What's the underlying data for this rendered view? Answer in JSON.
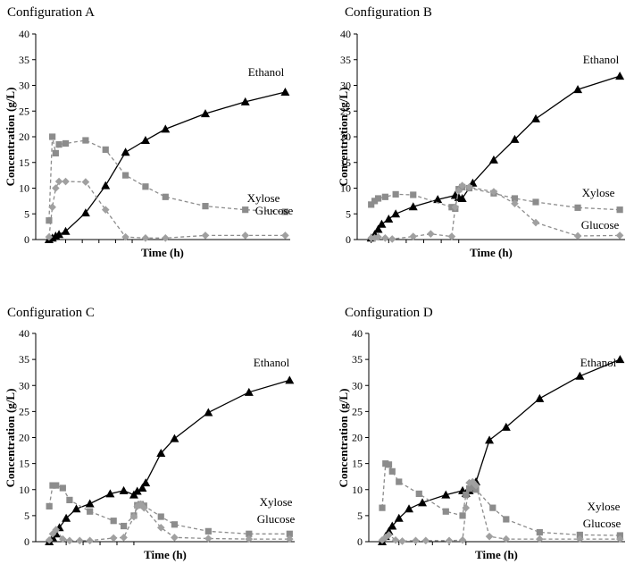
{
  "chart_data": [
    {
      "type": "line",
      "title": "Configuration A",
      "xlabel": "Time (h)",
      "ylabel": "Concentration (g/L)",
      "xlim": [
        -8,
        145
      ],
      "ylim": [
        0,
        40
      ],
      "xticks": [
        0,
        10,
        20,
        30,
        40,
        50
      ],
      "xtick_labels": [
        "",
        "",
        "",
        "",
        "",
        ""
      ],
      "yticks": [
        0,
        5,
        10,
        15,
        20,
        25,
        30,
        35,
        40
      ],
      "series": [
        {
          "name": "Ethanol",
          "marker": "triangle",
          "x": [
            0,
            2,
            4,
            6,
            10,
            22,
            34,
            46,
            58,
            70,
            94,
            118,
            142
          ],
          "y": [
            0,
            0.3,
            0.7,
            1.0,
            1.6,
            5.2,
            10.5,
            17.0,
            19.3,
            21.5,
            24.5,
            26.8,
            28.7
          ]
        },
        {
          "name": "Xylose",
          "marker": "square",
          "x": [
            0,
            2,
            4,
            6,
            10,
            22,
            34,
            46,
            58,
            70,
            94,
            118,
            142
          ],
          "y": [
            3.7,
            20.0,
            16.8,
            18.5,
            18.7,
            19.3,
            17.5,
            12.5,
            10.3,
            8.3,
            6.5,
            5.8,
            5.4
          ]
        },
        {
          "name": "Glucose",
          "marker": "diamond",
          "x": [
            0,
            2,
            4,
            6,
            10,
            22,
            34,
            46,
            58,
            70,
            94,
            118,
            142
          ],
          "y": [
            0.5,
            6.3,
            10.0,
            11.3,
            11.3,
            11.2,
            5.8,
            0.5,
            0.3,
            0.3,
            0.8,
            0.8,
            0.8
          ]
        }
      ]
    },
    {
      "type": "line",
      "title": "Configuration B",
      "xlabel": "Time (h)",
      "ylabel": "Concentration (g/L)",
      "xlim": [
        -8,
        145
      ],
      "ylim": [
        0,
        40
      ],
      "xticks": [
        0,
        10,
        20,
        30,
        40,
        50
      ],
      "xtick_labels": [
        "",
        "",
        "",
        "",
        "",
        ""
      ],
      "yticks": [
        0,
        5,
        10,
        15,
        20,
        25,
        30,
        35,
        40
      ],
      "series": [
        {
          "name": "Ethanol",
          "marker": "triangle",
          "x": [
            0,
            2,
            4,
            6,
            10,
            14,
            24,
            38,
            48,
            50,
            52,
            58,
            70,
            82,
            94,
            118,
            142
          ],
          "y": [
            0.3,
            1.0,
            2.0,
            3.0,
            4.0,
            5.0,
            6.4,
            7.8,
            8.6,
            8.2,
            8.0,
            11.0,
            15.5,
            19.5,
            23.5,
            29.2,
            31.8
          ]
        },
        {
          "name": "Xylose",
          "marker": "square",
          "x": [
            0,
            2,
            4,
            8,
            14,
            24,
            46,
            48,
            50,
            52,
            56,
            70,
            82,
            94,
            118,
            142
          ],
          "y": [
            6.8,
            7.5,
            8.0,
            8.3,
            8.8,
            8.7,
            6.3,
            6.0,
            9.8,
            10.2,
            10.0,
            9.0,
            8.0,
            7.3,
            6.2,
            5.8
          ]
        },
        {
          "name": "Glucose",
          "marker": "diamond",
          "x": [
            0,
            2,
            4,
            8,
            12,
            24,
            34,
            46,
            48,
            50,
            52,
            56,
            70,
            82,
            94,
            118,
            142
          ],
          "y": [
            0.3,
            0.3,
            0.5,
            0.3,
            0.1,
            0.6,
            1.1,
            0.6,
            6.3,
            9.5,
            10.5,
            10.2,
            9.3,
            7.0,
            3.3,
            0.7,
            0.8
          ]
        }
      ]
    },
    {
      "type": "line",
      "title": "Configuration C",
      "xlabel": "Time (h)",
      "ylabel": "Concentration (g/L)",
      "xlim": [
        -8,
        145
      ],
      "ylim": [
        0,
        40
      ],
      "xticks": [
        0,
        10,
        20,
        30,
        40,
        50
      ],
      "xtick_labels": [
        "",
        "",
        "",
        "",
        "",
        ""
      ],
      "yticks": [
        0,
        5,
        10,
        15,
        20,
        25,
        30,
        35,
        40
      ],
      "series": [
        {
          "name": "Ethanol",
          "marker": "triangle",
          "x": [
            0,
            2,
            4,
            6,
            10,
            16,
            24,
            36,
            44,
            50,
            52,
            55,
            57,
            66,
            74,
            94,
            118,
            142
          ],
          "y": [
            0,
            0.8,
            1.5,
            2.7,
            4.5,
            6.3,
            7.3,
            9.2,
            9.8,
            9.0,
            9.7,
            10.3,
            11.3,
            17.0,
            19.8,
            24.8,
            28.7,
            31.0
          ]
        },
        {
          "name": "Xylose",
          "marker": "square",
          "x": [
            0,
            2,
            4,
            8,
            12,
            24,
            38,
            44,
            50,
            52,
            54,
            56,
            66,
            74,
            94,
            118,
            142
          ],
          "y": [
            6.8,
            10.8,
            10.8,
            10.3,
            8.0,
            5.8,
            4.0,
            3.0,
            5.0,
            7.0,
            7.2,
            6.9,
            4.8,
            3.3,
            2.0,
            1.5,
            1.5
          ]
        },
        {
          "name": "Glucose",
          "marker": "diamond",
          "x": [
            0,
            2,
            4,
            8,
            12,
            18,
            24,
            38,
            44,
            50,
            52,
            54,
            56,
            66,
            74,
            94,
            118,
            142
          ],
          "y": [
            0.3,
            1.5,
            2.3,
            0.5,
            0.2,
            0.2,
            0.2,
            0.7,
            0.8,
            4.8,
            6.8,
            7.2,
            6.5,
            2.7,
            0.8,
            0.6,
            0.5,
            0.5
          ]
        }
      ]
    },
    {
      "type": "line",
      "title": "Configuration D",
      "xlabel": "Time (h)",
      "ylabel": "Concentration (g/L)",
      "xlim": [
        -8,
        145
      ],
      "ylim": [
        0,
        40
      ],
      "xticks": [
        0,
        10,
        20,
        30,
        40,
        50
      ],
      "xtick_labels": [
        "",
        "",
        "",
        "",
        "",
        ""
      ],
      "yticks": [
        0,
        5,
        10,
        15,
        20,
        25,
        30,
        35,
        40
      ],
      "series": [
        {
          "name": "Ethanol",
          "marker": "triangle",
          "x": [
            0,
            2,
            4,
            6,
            10,
            16,
            24,
            38,
            48,
            50,
            52,
            54,
            56,
            64,
            74,
            94,
            118,
            142
          ],
          "y": [
            0,
            1.0,
            2.0,
            3.0,
            4.5,
            6.3,
            7.5,
            9.0,
            9.8,
            9.3,
            9.8,
            10.3,
            11.5,
            19.5,
            22.0,
            27.5,
            31.8,
            35.0
          ]
        },
        {
          "name": "Xylose",
          "marker": "square",
          "x": [
            0,
            2,
            4,
            6,
            10,
            22,
            38,
            48,
            50,
            52,
            54,
            56,
            66,
            74,
            94,
            118,
            142
          ],
          "y": [
            6.5,
            15.0,
            14.8,
            13.5,
            11.5,
            9.2,
            5.8,
            5.0,
            9.0,
            10.2,
            10.5,
            10.0,
            6.5,
            4.3,
            1.8,
            1.3,
            1.2
          ]
        },
        {
          "name": "Glucose",
          "marker": "diamond",
          "x": [
            0,
            2,
            4,
            8,
            12,
            20,
            26,
            40,
            48,
            50,
            52,
            54,
            56,
            64,
            74,
            94,
            118,
            142
          ],
          "y": [
            0.3,
            0.8,
            1.3,
            0.3,
            0.1,
            0.2,
            0.2,
            0.2,
            0.3,
            6.5,
            11.3,
            11.5,
            10.8,
            1.0,
            0.5,
            0.5,
            0.5,
            0.5
          ]
        }
      ]
    }
  ]
}
